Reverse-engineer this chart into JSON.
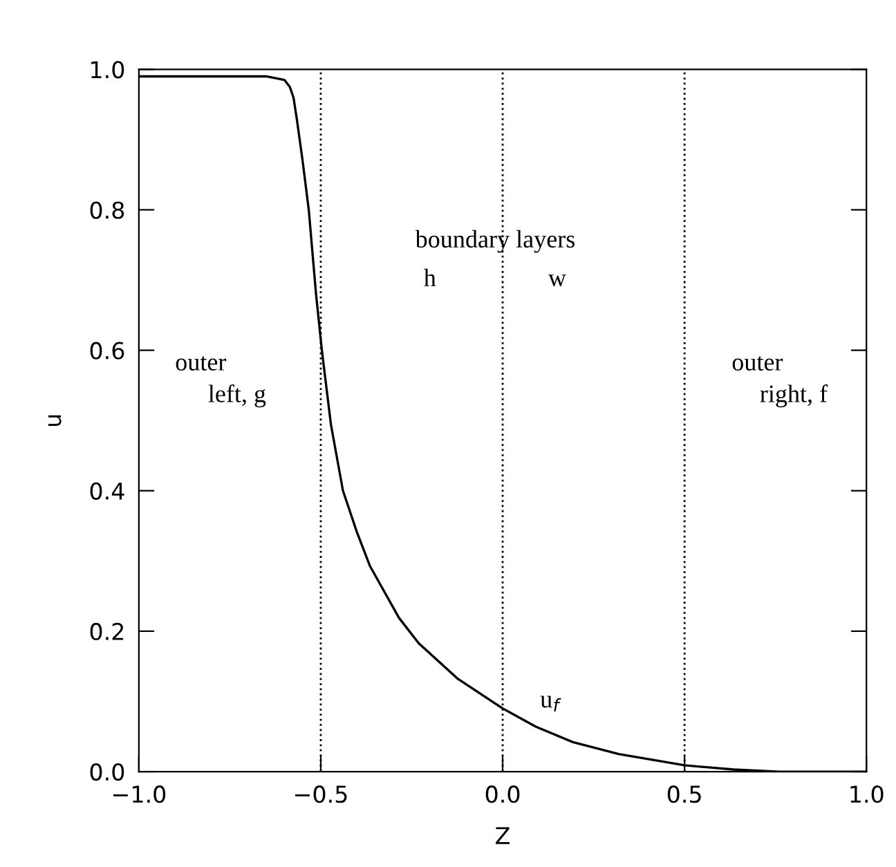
{
  "chart_data": {
    "type": "line",
    "xlabel": "Z",
    "ylabel": "u",
    "xlim": [
      -1.0,
      1.0
    ],
    "ylim": [
      0.0,
      1.0
    ],
    "xticks": [
      {
        "value": -1.0,
        "label": "−1.0"
      },
      {
        "value": -0.5,
        "label": "−0.5"
      },
      {
        "value": 0.0,
        "label": "0.0"
      },
      {
        "value": 0.5,
        "label": "0.5"
      },
      {
        "value": 1.0,
        "label": "1.0"
      }
    ],
    "yticks": [
      {
        "value": 0.0,
        "label": "0.0"
      },
      {
        "value": 0.2,
        "label": "0.2"
      },
      {
        "value": 0.4,
        "label": "0.4"
      },
      {
        "value": 0.6,
        "label": "0.6"
      },
      {
        "value": 0.8,
        "label": "0.8"
      },
      {
        "value": 1.0,
        "label": "1.0"
      }
    ],
    "grid": false,
    "legend": false,
    "marker": "none",
    "line_style": "solid",
    "series": [
      {
        "color": "#000000",
        "x": [
          -1.0,
          -0.8,
          -0.65,
          -0.6,
          -0.585,
          -0.575,
          -0.566,
          -0.55,
          -0.533,
          -0.513,
          -0.497,
          -0.472,
          -0.439,
          -0.4,
          -0.365,
          -0.285,
          -0.231,
          -0.123,
          0.0,
          0.091,
          0.193,
          0.319,
          0.5,
          0.635,
          0.76,
          0.9,
          1.0
        ],
        "values": [
          0.99,
          0.99,
          0.99,
          0.985,
          0.975,
          0.96,
          0.93,
          0.87,
          0.8,
          0.68,
          0.6,
          0.494,
          0.4,
          0.34,
          0.293,
          0.219,
          0.183,
          0.132,
          0.09,
          0.064,
          0.042,
          0.025,
          0.009,
          0.003,
          0.0,
          0.0,
          0.0
        ]
      }
    ],
    "ref_lines": [
      {
        "axis": "x",
        "value": -0.5,
        "line_style": "dotted",
        "color": "#000000"
      },
      {
        "axis": "x",
        "value": 0.0,
        "line_style": "dotted",
        "color": "#000000"
      },
      {
        "axis": "x",
        "value": 0.5,
        "line_style": "dotted",
        "color": "#000000"
      }
    ],
    "annotations": [
      "boundary layers",
      "h",
      "w",
      "outer",
      "left, g",
      "outer",
      "right, f",
      "u$_{f}$"
    ]
  }
}
